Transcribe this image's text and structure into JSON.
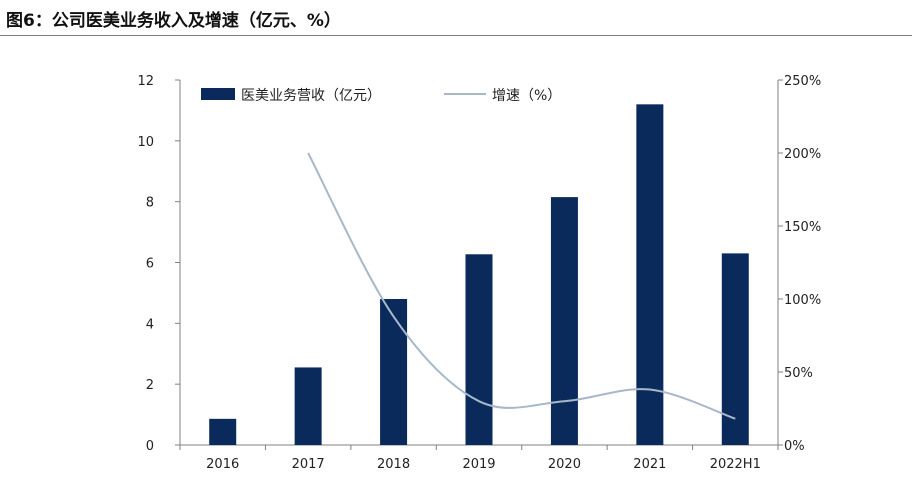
{
  "figure": {
    "title": "图6：公司医美业务收入及增速（亿元、%）"
  },
  "chart_data": {
    "type": "bar",
    "categories": [
      "2016",
      "2017",
      "2018",
      "2019",
      "2020",
      "2021",
      "2022H1"
    ],
    "series": [
      {
        "name": "医美业务营收（亿元）",
        "type": "bar",
        "axis": "left",
        "color": "#0b2a5c",
        "values": [
          0.86,
          2.55,
          4.8,
          6.27,
          8.15,
          11.2,
          6.3
        ]
      },
      {
        "name": "增速（%）",
        "type": "line",
        "axis": "right",
        "color": "#a8b8c8",
        "values": [
          null,
          200,
          88,
          30,
          30,
          38,
          18
        ]
      }
    ],
    "y_left": {
      "ylim": [
        0,
        12
      ],
      "ticks": [
        "0",
        "2",
        "4",
        "6",
        "8",
        "10",
        "12"
      ]
    },
    "y_right": {
      "ylim": [
        0,
        250
      ],
      "ticks": [
        "0%",
        "50%",
        "100%",
        "150%",
        "200%",
        "250%"
      ]
    },
    "legend": "top-left, inside plot",
    "grid": false
  }
}
